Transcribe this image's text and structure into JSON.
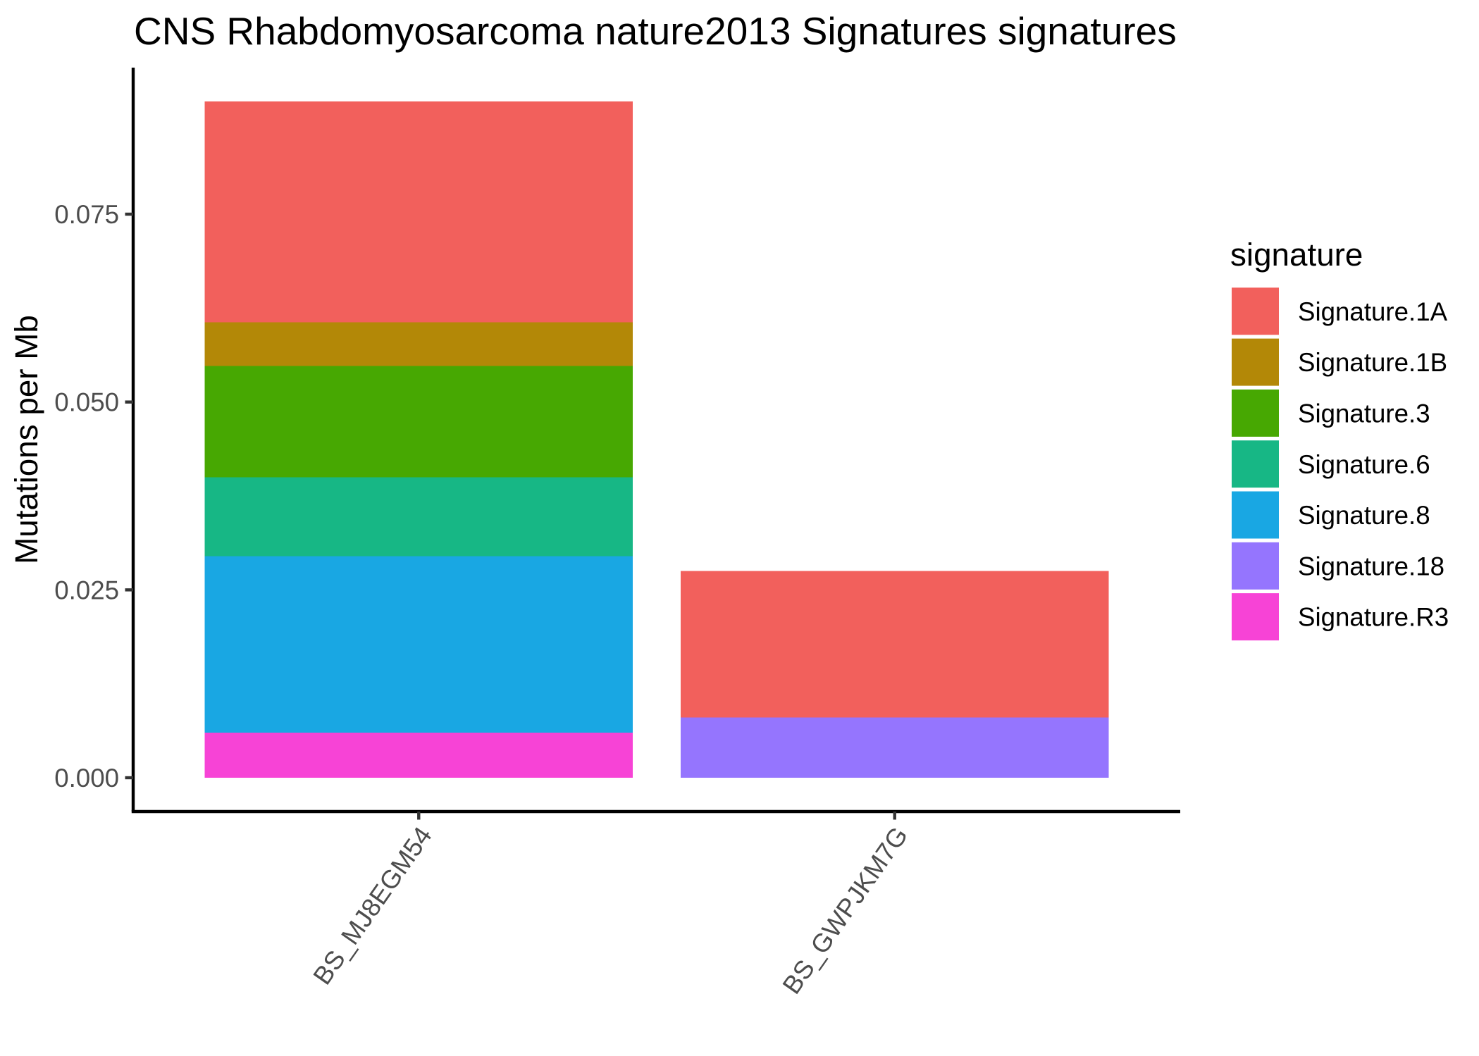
{
  "chart_data": {
    "type": "bar",
    "stacked": true,
    "title": "CNS Rhabdomyosarcoma nature2013 Signatures signatures",
    "ylabel": "Mutations per Mb",
    "categories": [
      "BS_MJ8EGM54",
      "BS_GWPJKM7G"
    ],
    "ylim": [
      -0.0045,
      0.0945
    ],
    "yticks": [
      0,
      0.025,
      0.05,
      0.075
    ],
    "ytick_labels": [
      "0.000",
      "0.025",
      "0.050",
      "0.075"
    ],
    "grid": false,
    "legend_title": "signature",
    "legend_position": "right",
    "series": [
      {
        "name": "Signature.1A",
        "color": "#F2605C",
        "values": [
          0.0294,
          0.0195
        ]
      },
      {
        "name": "Signature.1B",
        "color": "#B38807",
        "values": [
          0.0058,
          0
        ]
      },
      {
        "name": "Signature.3",
        "color": "#47A802",
        "values": [
          0.0148,
          0
        ]
      },
      {
        "name": "Signature.6",
        "color": "#17B785",
        "values": [
          0.0105,
          0
        ]
      },
      {
        "name": "Signature.8",
        "color": "#19A7E3",
        "values": [
          0.0235,
          0
        ]
      },
      {
        "name": "Signature.18",
        "color": "#9575FE",
        "values": [
          0,
          0.008
        ]
      },
      {
        "name": "Signature.R3",
        "color": "#F743D6",
        "values": [
          0.006,
          0
        ]
      }
    ]
  }
}
